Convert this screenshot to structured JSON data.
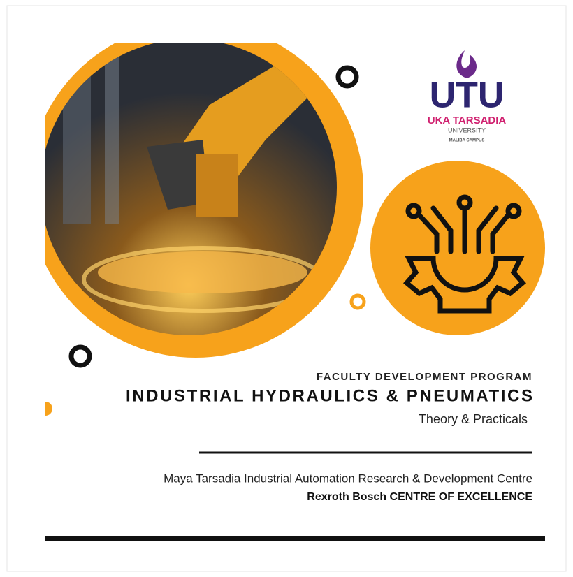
{
  "logo": {
    "short": "UTU",
    "name": "UKA TARSADIA",
    "sub": "UNIVERSITY",
    "campus": "MALIBA CAMPUS"
  },
  "program": {
    "label": "FACULTY DEVELOPMENT PROGRAM",
    "title": "INDUSTRIAL HYDRAULICS & PNEUMATICS",
    "subtitle": "Theory & Practicals"
  },
  "organizer": {
    "centre": "Maya Tarsadia Industrial Automation Research & Development Centre",
    "coe": "Rexroth Bosch CENTRE OF EXCELLENCE"
  }
}
